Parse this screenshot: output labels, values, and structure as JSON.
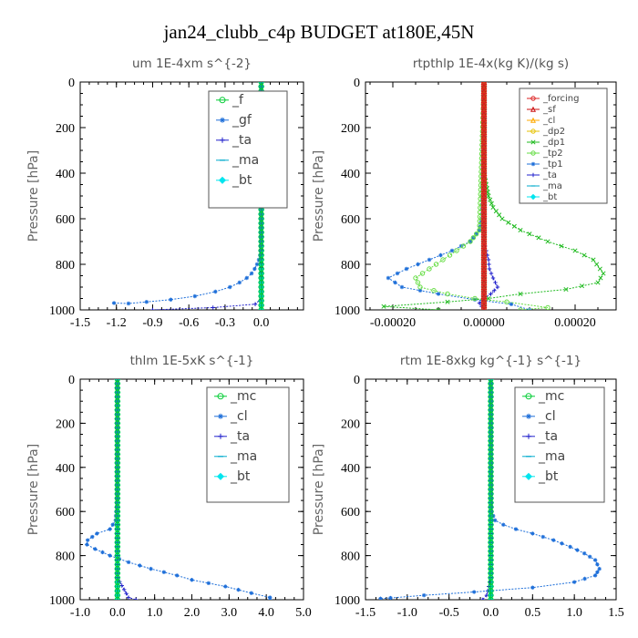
{
  "figure_title": "jan24_clubb_c4p  BUDGET at180E,45N",
  "chart_data": [
    {
      "type": "line",
      "title": "um  1E-4xm s^{-2}",
      "ylabel": "Pressure [hPa]",
      "xlabel": "",
      "xlim": [
        -1.5,
        0.35
      ],
      "ylim": [
        1000,
        0
      ],
      "xticks": [
        "-1.5",
        "-1.2",
        "-0.9",
        "-0.6",
        "-0.3",
        "0.0"
      ],
      "xtick_values": [
        -1.5,
        -1.2,
        -0.9,
        -0.6,
        -0.3,
        0.0
      ],
      "yticks": [
        "0",
        "200",
        "400",
        "600",
        "800",
        "1000"
      ],
      "ytick_values": [
        0,
        200,
        400,
        600,
        800,
        1000
      ],
      "legend": "top-right",
      "series": [
        {
          "name": "_f",
          "color": "#00cc33",
          "marker": "circle",
          "x": [
            0,
            0,
            0,
            0,
            0,
            0
          ],
          "y": [
            0,
            200,
            400,
            600,
            800,
            1000
          ]
        },
        {
          "name": "_gf",
          "color": "#1e6fd9",
          "marker": "star",
          "x": [
            0,
            0,
            0,
            -0.002,
            -0.005,
            -0.01,
            -0.02,
            -0.035,
            -0.055,
            -0.08,
            -0.12,
            -0.18,
            -0.26,
            -0.38,
            -0.55,
            -0.75,
            -0.95,
            -1.1,
            -1.22
          ],
          "y": [
            0,
            400,
            600,
            680,
            720,
            760,
            780,
            800,
            820,
            840,
            860,
            880,
            900,
            920,
            940,
            955,
            965,
            972,
            970
          ]
        },
        {
          "name": "_ta",
          "color": "#2222cc",
          "marker": "plus",
          "x": [
            0,
            0,
            0,
            -0.05,
            -0.4,
            -0.9
          ],
          "y": [
            0,
            600,
            950,
            975,
            990,
            1000
          ]
        },
        {
          "name": "_ma",
          "color": "#00aacc",
          "marker": "dash",
          "x": [
            0,
            0,
            0
          ],
          "y": [
            0,
            500,
            1000
          ]
        },
        {
          "name": "_bt",
          "color": "#00e5ee",
          "marker": "diamond",
          "x": [
            0,
            0,
            0
          ],
          "y": [
            0,
            500,
            1000
          ]
        }
      ]
    },
    {
      "type": "line",
      "title": "rtpthlp  1E-4x(kg K)/(kg s)",
      "ylabel": "Pressure [hPa]",
      "xlabel": "",
      "xlim": [
        -0.00026,
        0.00029
      ],
      "ylim": [
        1000,
        0
      ],
      "xticks": [
        "-0.00020",
        "0.00000",
        "0.00020"
      ],
      "xtick_values": [
        -0.0002,
        0.0,
        0.0002
      ],
      "yticks": [
        "0",
        "200",
        "400",
        "600",
        "800",
        "1000"
      ],
      "ytick_values": [
        0,
        200,
        400,
        600,
        800,
        1000
      ],
      "legend": "top-right",
      "series": [
        {
          "name": "_forcing",
          "color": "#dd2222",
          "marker": "circle",
          "x": [
            0,
            0,
            0
          ],
          "y": [
            0,
            500,
            1000
          ]
        },
        {
          "name": "_sf",
          "color": "#cc1111",
          "marker": "triangle",
          "x": [
            0,
            0,
            0
          ],
          "y": [
            0,
            500,
            1000
          ]
        },
        {
          "name": "_cl",
          "color": "#ffaa00",
          "marker": "triangle",
          "x": [
            0,
            0,
            0
          ],
          "y": [
            0,
            500,
            1000
          ]
        },
        {
          "name": "_dp2",
          "color": "#e6c200",
          "marker": "circle",
          "x": [
            0,
            0,
            0
          ],
          "y": [
            0,
            500,
            1000
          ]
        },
        {
          "name": "_dp1",
          "color": "#22bb22",
          "marker": "x",
          "x": [
            0,
            0,
            5e-06,
            1e-05,
            2e-05,
            4e-05,
            8e-05,
            0.00014,
            0.0002,
            0.00024,
            0.000262,
            0.00025,
            0.00018,
            8e-05,
            1e-05,
            -8e-05,
            -0.00022,
            -0.0001
          ],
          "y": [
            0,
            400,
            450,
            500,
            550,
            600,
            650,
            700,
            740,
            780,
            840,
            880,
            910,
            930,
            950,
            965,
            985,
            1000
          ]
        },
        {
          "name": "_tp2",
          "color": "#66dd44",
          "marker": "circle",
          "x": [
            0,
            -1e-05,
            -3e-05,
            -6e-05,
            -9e-05,
            -0.00012,
            -0.00015,
            -0.00014,
            -8e-05,
            -2e-05,
            5e-05,
            0.00014,
            8e-05
          ],
          "y": [
            0,
            650,
            700,
            740,
            780,
            820,
            860,
            900,
            930,
            950,
            965,
            990,
            1000
          ]
        },
        {
          "name": "_tp1",
          "color": "#1e6fd9",
          "marker": "star",
          "x": [
            0,
            -5e-06,
            -1e-05,
            -3e-05,
            -7e-05,
            -0.00012,
            -0.00017,
            -0.00021,
            -0.00018,
            -0.0001,
            -2e-05,
            6e-05,
            0.0001
          ],
          "y": [
            0,
            600,
            650,
            700,
            740,
            780,
            820,
            860,
            900,
            930,
            955,
            975,
            1000
          ]
        },
        {
          "name": "_ta",
          "color": "#2222cc",
          "marker": "plus",
          "x": [
            0,
            0,
            5e-06,
            1e-05,
            1.2e-05,
            2e-05,
            3e-05,
            1.5e-05,
            0,
            -1e-05,
            0
          ],
          "y": [
            0,
            700,
            740,
            780,
            820,
            860,
            900,
            930,
            950,
            970,
            1000
          ]
        },
        {
          "name": "_ma",
          "color": "#00aacc",
          "marker": "dash",
          "x": [
            0,
            0,
            0
          ],
          "y": [
            0,
            500,
            1000
          ]
        },
        {
          "name": "_bt",
          "color": "#00e5ee",
          "marker": "diamond",
          "x": [
            0,
            0,
            0
          ],
          "y": [
            0,
            500,
            1000
          ]
        }
      ]
    },
    {
      "type": "line",
      "title": "thlm  1E-5xK s^{-1}",
      "ylabel": "Pressure [hPa]",
      "xlabel": "",
      "xlim": [
        -1.0,
        5.0
      ],
      "ylim": [
        1000,
        0
      ],
      "xticks": [
        "-1.0",
        "0.0",
        "1.0",
        "2.0",
        "3.0",
        "4.0",
        "5.0"
      ],
      "xtick_values": [
        -1,
        0,
        1,
        2,
        3,
        4,
        5
      ],
      "yticks": [
        "0",
        "200",
        "400",
        "600",
        "800",
        "1000"
      ],
      "ytick_values": [
        0,
        200,
        400,
        600,
        800,
        1000
      ],
      "legend": "top-right",
      "series": [
        {
          "name": "_mc",
          "color": "#00cc33",
          "marker": "circle",
          "x": [
            0,
            0,
            0
          ],
          "y": [
            0,
            500,
            1000
          ]
        },
        {
          "name": "_cl",
          "color": "#1e6fd9",
          "marker": "star",
          "x": [
            0,
            -0.01,
            -0.05,
            -0.2,
            -0.55,
            -0.8,
            -0.82,
            -0.6,
            -0.2,
            0.3,
            0.9,
            1.6,
            2.0,
            2.9,
            3.6,
            4.1,
            4.1
          ],
          "y": [
            0,
            540,
            640,
            680,
            700,
            730,
            750,
            770,
            800,
            830,
            860,
            890,
            910,
            940,
            970,
            990,
            1000
          ]
        },
        {
          "name": "_ta",
          "color": "#2222cc",
          "marker": "plus",
          "x": [
            0,
            0,
            0.3,
            0.5
          ],
          "y": [
            0,
            900,
            990,
            1000
          ]
        },
        {
          "name": "_ma",
          "color": "#00aacc",
          "marker": "dash",
          "x": [
            0,
            0,
            0
          ],
          "y": [
            0,
            500,
            1000
          ]
        },
        {
          "name": "_bt",
          "color": "#00e5ee",
          "marker": "diamond",
          "x": [
            0,
            0,
            0
          ],
          "y": [
            0,
            500,
            1000
          ]
        }
      ]
    },
    {
      "type": "line",
      "title": "rtm  1E-8xkg kg^{-1} s^{-1}",
      "ylabel": "Pressure [hPa]",
      "xlabel": "",
      "xlim": [
        -1.5,
        1.5
      ],
      "ylim": [
        1000,
        0
      ],
      "xticks": [
        "-1.5",
        "-1.0",
        "-0.5",
        "0.0",
        "0.5",
        "1.0",
        "1.5"
      ],
      "xtick_values": [
        -1.5,
        -1,
        -0.5,
        0,
        0.5,
        1,
        1.5
      ],
      "yticks": [
        "0",
        "200",
        "400",
        "600",
        "800",
        "1000"
      ],
      "ytick_values": [
        0,
        200,
        400,
        600,
        800,
        1000
      ],
      "legend": "top-right",
      "series": [
        {
          "name": "_mc",
          "color": "#00cc33",
          "marker": "circle",
          "x": [
            0,
            0,
            0
          ],
          "y": [
            0,
            500,
            1000
          ]
        },
        {
          "name": "_cl",
          "color": "#1e6fd9",
          "marker": "star",
          "x": [
            0,
            0.01,
            0.05,
            0.15,
            0.3,
            0.5,
            0.75,
            0.95,
            1.12,
            1.25,
            1.3,
            1.25,
            1.0,
            0.5,
            -0.2,
            -0.8,
            -1.2,
            -1.32
          ],
          "y": [
            0,
            600,
            640,
            660,
            680,
            700,
            730,
            760,
            790,
            820,
            860,
            890,
            920,
            945,
            965,
            980,
            992,
            995
          ]
        },
        {
          "name": "_ta",
          "color": "#2222cc",
          "marker": "plus",
          "x": [
            0,
            0,
            -0.05,
            -0.1
          ],
          "y": [
            0,
            900,
            980,
            1000
          ]
        },
        {
          "name": "_ma",
          "color": "#00aacc",
          "marker": "dash",
          "x": [
            0,
            0,
            0
          ],
          "y": [
            0,
            500,
            1000
          ]
        },
        {
          "name": "_bt",
          "color": "#00e5ee",
          "marker": "diamond",
          "x": [
            0,
            0,
            0
          ],
          "y": [
            0,
            500,
            1000
          ]
        }
      ]
    }
  ]
}
